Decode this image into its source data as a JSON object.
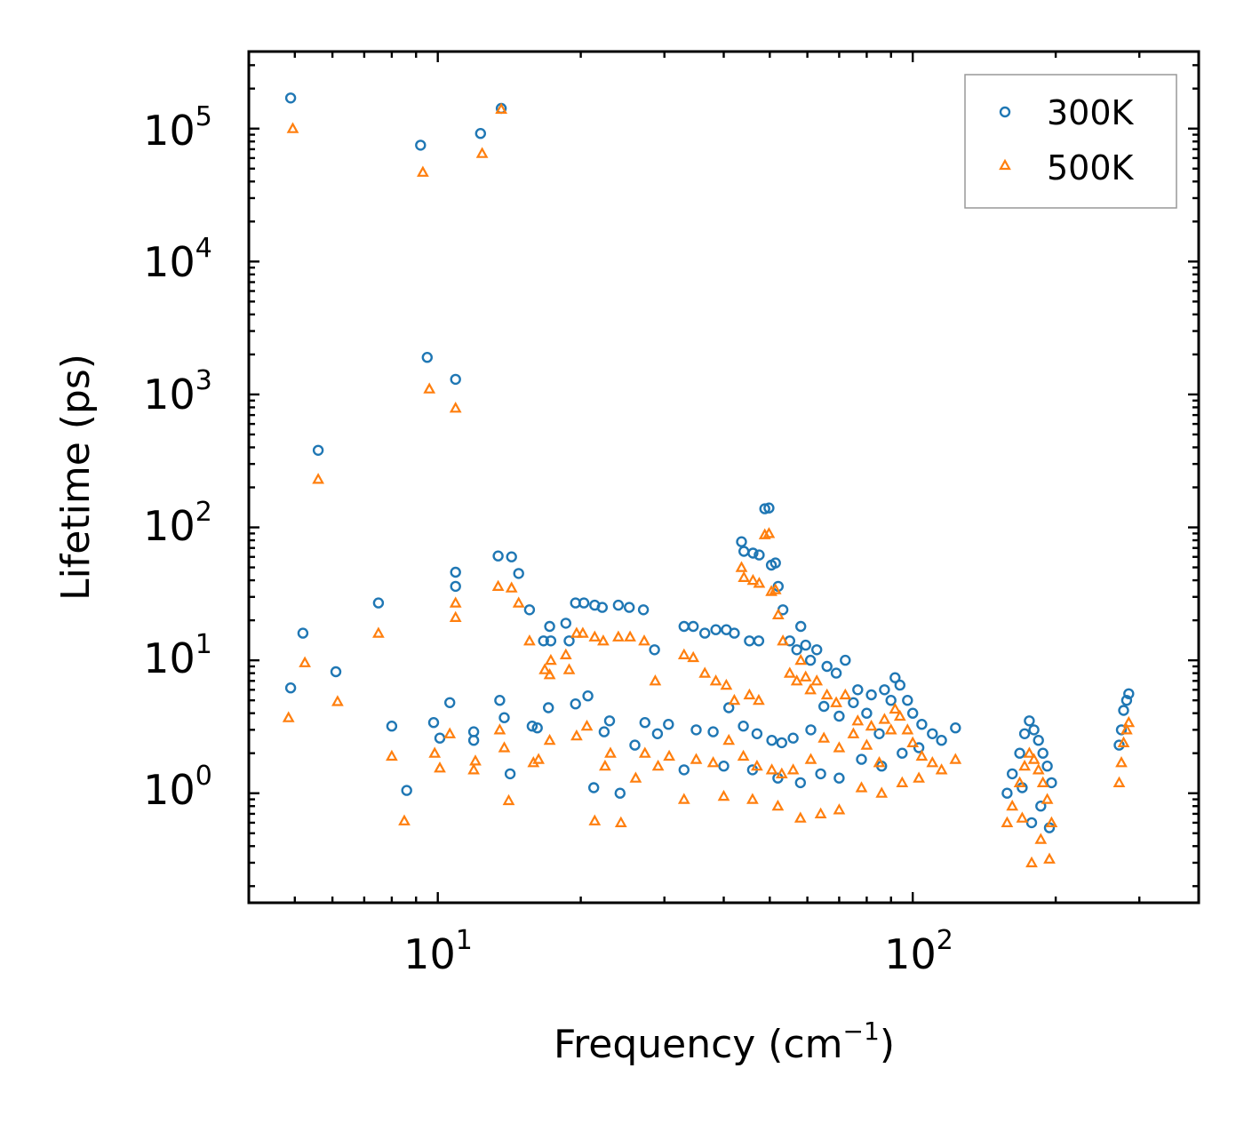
{
  "chart_data": {
    "type": "scatter",
    "xscale": "log",
    "yscale": "log",
    "xlim": [
      4.0,
      400.0
    ],
    "ylim": [
      0.15,
      380000
    ],
    "xlabel": "Frequency (cm",
    "xlabel_sup": "−1",
    "xlabel_tail": ")",
    "ylabel": "Lifetime (ps)",
    "legend_position": "top-right",
    "x_ticks": [
      {
        "base": "10",
        "exp": "1",
        "value": 10
      },
      {
        "base": "10",
        "exp": "2",
        "value": 100
      }
    ],
    "y_ticks": [
      {
        "base": "10",
        "exp": "0",
        "value": 1
      },
      {
        "base": "10",
        "exp": "1",
        "value": 10
      },
      {
        "base": "10",
        "exp": "2",
        "value": 100
      },
      {
        "base": "10",
        "exp": "3",
        "value": 1000
      },
      {
        "base": "10",
        "exp": "4",
        "value": 10000
      },
      {
        "base": "10",
        "exp": "5",
        "value": 100000
      }
    ],
    "series": [
      {
        "name": "300K",
        "marker": "circle",
        "color": "#1f77b4",
        "points": [
          [
            4.9,
            170000
          ],
          [
            9.2,
            75000
          ],
          [
            12.3,
            92000
          ],
          [
            13.6,
            142000
          ],
          [
            5.6,
            380
          ],
          [
            9.5,
            1900
          ],
          [
            10.9,
            1300
          ],
          [
            4.9,
            6.2
          ],
          [
            5.2,
            16
          ],
          [
            6.1,
            8.2
          ],
          [
            7.5,
            27
          ],
          [
            8.0,
            3.2
          ],
          [
            8.6,
            1.05
          ],
          [
            9.8,
            3.4
          ],
          [
            10.1,
            2.6
          ],
          [
            10.6,
            4.8
          ],
          [
            10.9,
            46
          ],
          [
            10.9,
            36
          ],
          [
            11.9,
            2.9
          ],
          [
            11.9,
            2.5
          ],
          [
            13.4,
            61
          ],
          [
            14.3,
            60
          ],
          [
            14.8,
            45
          ],
          [
            13.5,
            5.0
          ],
          [
            13.8,
            3.7
          ],
          [
            14.2,
            1.4
          ],
          [
            15.6,
            24
          ],
          [
            15.8,
            3.2
          ],
          [
            16.7,
            14
          ],
          [
            17.2,
            18
          ],
          [
            17.3,
            14
          ],
          [
            18.6,
            19
          ],
          [
            18.9,
            14
          ],
          [
            19.5,
            27
          ],
          [
            20.3,
            27
          ],
          [
            20.7,
            5.4
          ],
          [
            21.4,
            26
          ],
          [
            22.2,
            25
          ],
          [
            24.0,
            26
          ],
          [
            25.3,
            25
          ],
          [
            27.1,
            24
          ],
          [
            28.6,
            12
          ],
          [
            21.3,
            1.1
          ],
          [
            24.2,
            1.0
          ],
          [
            17.1,
            4.4
          ],
          [
            16.2,
            3.1
          ],
          [
            19.5,
            4.7
          ],
          [
            22.4,
            2.9
          ],
          [
            23.0,
            3.5
          ],
          [
            26.0,
            2.3
          ],
          [
            27.3,
            3.4
          ],
          [
            29.0,
            2.8
          ],
          [
            30.6,
            3.3
          ],
          [
            33.0,
            18
          ],
          [
            34.5,
            18
          ],
          [
            36.5,
            16
          ],
          [
            38.5,
            17
          ],
          [
            40.5,
            17
          ],
          [
            42.1,
            16
          ],
          [
            45.3,
            14
          ],
          [
            47.4,
            14
          ],
          [
            43.6,
            78
          ],
          [
            44.1,
            66
          ],
          [
            46.1,
            64
          ],
          [
            47.5,
            62
          ],
          [
            48.8,
            138
          ],
          [
            49.8,
            140
          ],
          [
            50.4,
            52
          ],
          [
            51.4,
            54
          ],
          [
            52.1,
            36
          ],
          [
            53.3,
            24
          ],
          [
            55.1,
            14
          ],
          [
            57.0,
            12
          ],
          [
            58.1,
            18
          ],
          [
            59.5,
            13
          ],
          [
            60.9,
            10
          ],
          [
            62.8,
            12
          ],
          [
            66.0,
            9
          ],
          [
            69.0,
            8
          ],
          [
            72.1,
            10
          ],
          [
            76.6,
            6
          ],
          [
            81.8,
            5.5
          ],
          [
            87.2,
            6
          ],
          [
            91.8,
            7.4
          ],
          [
            97.5,
            5.0
          ],
          [
            104.5,
            3.3
          ],
          [
            115.0,
            2.5
          ],
          [
            123.0,
            3.1
          ],
          [
            35.0,
            3.0
          ],
          [
            38.0,
            2.9
          ],
          [
            41.0,
            4.4
          ],
          [
            44.0,
            3.2
          ],
          [
            47.0,
            2.8
          ],
          [
            50.5,
            2.5
          ],
          [
            53.0,
            2.4
          ],
          [
            56.0,
            2.6
          ],
          [
            61.0,
            3.0
          ],
          [
            65.0,
            4.5
          ],
          [
            70.0,
            3.8
          ],
          [
            75.0,
            4.8
          ],
          [
            80.0,
            4.0
          ],
          [
            85.0,
            2.8
          ],
          [
            90.0,
            5.0
          ],
          [
            94.0,
            6.5
          ],
          [
            100.0,
            4.0
          ],
          [
            110.0,
            2.8
          ],
          [
            33.0,
            1.5
          ],
          [
            40.0,
            1.6
          ],
          [
            46.0,
            1.5
          ],
          [
            52.0,
            1.3
          ],
          [
            58.0,
            1.2
          ],
          [
            64.0,
            1.4
          ],
          [
            70.0,
            1.3
          ],
          [
            78.0,
            1.8
          ],
          [
            86.0,
            1.6
          ],
          [
            95.0,
            2.0
          ],
          [
            103.0,
            2.2
          ],
          [
            158.0,
            1.0
          ],
          [
            162.0,
            1.4
          ],
          [
            168.0,
            2.0
          ],
          [
            172.0,
            2.8
          ],
          [
            176.0,
            3.5
          ],
          [
            180.0,
            3.0
          ],
          [
            184.0,
            2.5
          ],
          [
            188.0,
            2.0
          ],
          [
            192.0,
            1.6
          ],
          [
            196.0,
            1.2
          ],
          [
            170.0,
            1.1
          ],
          [
            178.0,
            0.6
          ],
          [
            186.0,
            0.8
          ],
          [
            194.0,
            0.55
          ],
          [
            272.0,
            2.3
          ],
          [
            275.0,
            3.0
          ],
          [
            278.0,
            4.2
          ],
          [
            282.0,
            5.0
          ],
          [
            285.0,
            5.6
          ]
        ]
      },
      {
        "name": "500K",
        "marker": "triangle",
        "color": "#ff7f0e",
        "points": [
          [
            4.95,
            100000
          ],
          [
            9.3,
            47000
          ],
          [
            12.4,
            65000
          ],
          [
            13.6,
            140000
          ],
          [
            5.6,
            230
          ],
          [
            9.6,
            1100
          ],
          [
            10.9,
            790
          ],
          [
            4.85,
            3.7
          ],
          [
            5.25,
            9.6
          ],
          [
            6.15,
            4.9
          ],
          [
            7.5,
            16
          ],
          [
            8.0,
            1.9
          ],
          [
            8.5,
            0.62
          ],
          [
            9.85,
            2.0
          ],
          [
            10.1,
            1.55
          ],
          [
            10.6,
            2.8
          ],
          [
            10.9,
            27
          ],
          [
            10.9,
            21
          ],
          [
            12.0,
            1.75
          ],
          [
            11.9,
            1.5
          ],
          [
            13.4,
            36
          ],
          [
            14.3,
            35
          ],
          [
            14.8,
            27
          ],
          [
            13.5,
            3.0
          ],
          [
            13.8,
            2.2
          ],
          [
            14.1,
            0.88
          ],
          [
            15.6,
            14
          ],
          [
            15.9,
            1.7
          ],
          [
            16.8,
            8.5
          ],
          [
            17.3,
            10
          ],
          [
            17.2,
            7.8
          ],
          [
            18.6,
            11
          ],
          [
            18.9,
            8.5
          ],
          [
            19.6,
            16
          ],
          [
            20.2,
            16
          ],
          [
            20.6,
            3.2
          ],
          [
            21.4,
            15
          ],
          [
            22.3,
            14
          ],
          [
            24.0,
            15
          ],
          [
            25.4,
            15
          ],
          [
            27.2,
            14
          ],
          [
            28.7,
            7
          ],
          [
            21.4,
            0.62
          ],
          [
            24.3,
            0.6
          ],
          [
            17.2,
            2.5
          ],
          [
            16.3,
            1.8
          ],
          [
            19.6,
            2.7
          ],
          [
            22.5,
            1.6
          ],
          [
            23.1,
            2.0
          ],
          [
            26.1,
            1.3
          ],
          [
            27.3,
            2.0
          ],
          [
            29.1,
            1.6
          ],
          [
            30.7,
            1.9
          ],
          [
            33.0,
            11
          ],
          [
            34.5,
            10.5
          ],
          [
            36.5,
            8
          ],
          [
            38.5,
            7
          ],
          [
            40.5,
            6.5
          ],
          [
            42.1,
            5
          ],
          [
            45.3,
            5.5
          ],
          [
            47.4,
            5
          ],
          [
            43.6,
            50
          ],
          [
            44.1,
            42
          ],
          [
            46.1,
            40
          ],
          [
            47.5,
            38
          ],
          [
            48.8,
            88
          ],
          [
            49.8,
            90
          ],
          [
            50.4,
            33
          ],
          [
            51.4,
            34
          ],
          [
            52.1,
            22
          ],
          [
            53.3,
            14
          ],
          [
            55.1,
            8
          ],
          [
            57.0,
            7
          ],
          [
            58.1,
            10
          ],
          [
            59.5,
            7.5
          ],
          [
            60.9,
            6
          ],
          [
            62.8,
            7
          ],
          [
            66.0,
            5.5
          ],
          [
            69.0,
            4.8
          ],
          [
            72.1,
            5.5
          ],
          [
            76.6,
            3.5
          ],
          [
            81.8,
            3.2
          ],
          [
            87.2,
            3.6
          ],
          [
            91.8,
            4.3
          ],
          [
            97.5,
            3.0
          ],
          [
            104.5,
            1.9
          ],
          [
            115.0,
            1.5
          ],
          [
            123.0,
            1.8
          ],
          [
            35.0,
            1.8
          ],
          [
            38.0,
            1.7
          ],
          [
            41.0,
            2.5
          ],
          [
            44.0,
            1.9
          ],
          [
            47.0,
            1.6
          ],
          [
            50.5,
            1.5
          ],
          [
            53.0,
            1.4
          ],
          [
            56.0,
            1.5
          ],
          [
            61.0,
            1.8
          ],
          [
            65.0,
            2.6
          ],
          [
            70.0,
            2.2
          ],
          [
            75.0,
            2.8
          ],
          [
            80.0,
            2.3
          ],
          [
            85.0,
            1.7
          ],
          [
            90.0,
            3.0
          ],
          [
            94.0,
            3.8
          ],
          [
            100.0,
            2.4
          ],
          [
            110.0,
            1.7
          ],
          [
            33.0,
            0.9
          ],
          [
            40.0,
            0.95
          ],
          [
            46.0,
            0.9
          ],
          [
            52.0,
            0.8
          ],
          [
            58.0,
            0.65
          ],
          [
            64.0,
            0.7
          ],
          [
            70.0,
            0.75
          ],
          [
            78.0,
            1.1
          ],
          [
            86.0,
            1.0
          ],
          [
            95.0,
            1.2
          ],
          [
            103.0,
            1.3
          ],
          [
            158.0,
            0.6
          ],
          [
            162.0,
            0.8
          ],
          [
            168.0,
            1.2
          ],
          [
            172.0,
            1.6
          ],
          [
            176.0,
            2.0
          ],
          [
            180.0,
            1.8
          ],
          [
            184.0,
            1.5
          ],
          [
            188.0,
            1.2
          ],
          [
            192.0,
            0.9
          ],
          [
            196.0,
            0.6
          ],
          [
            170.0,
            0.65
          ],
          [
            178.0,
            0.3
          ],
          [
            186.0,
            0.45
          ],
          [
            194.0,
            0.32
          ],
          [
            272.0,
            1.2
          ],
          [
            275.0,
            1.7
          ],
          [
            278.0,
            2.4
          ],
          [
            282.0,
            3.0
          ],
          [
            285.0,
            3.4
          ]
        ]
      }
    ]
  }
}
